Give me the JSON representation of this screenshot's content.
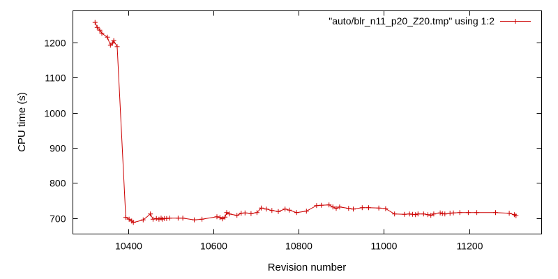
{
  "chart_data": {
    "type": "line",
    "xlabel": "Revision number",
    "ylabel": "CPU time (s)",
    "xlim": [
      10270,
      11370
    ],
    "ylim": [
      655,
      1290
    ],
    "xticks": [
      10400,
      10600,
      10800,
      11000,
      11200
    ],
    "yticks": [
      700,
      800,
      900,
      1000,
      1100,
      1200
    ],
    "grid": false,
    "legend_position": "top-right",
    "series_color": "#cc0000",
    "series": [
      {
        "name": "\"auto/blr_n11_p20_Z20.tmp\" using 1:2",
        "x": [
          10322,
          10327,
          10333,
          10338,
          10351,
          10358,
          10363,
          10366,
          10374,
          10394,
          10402,
          10408,
          10412,
          10435,
          10452,
          10458,
          10466,
          10472,
          10477,
          10480,
          10485,
          10490,
          10497,
          10517,
          10528,
          10555,
          10573,
          10608,
          10615,
          10621,
          10627,
          10631,
          10637,
          10655,
          10665,
          10674,
          10688,
          10702,
          10712,
          10724,
          10737,
          10752,
          10768,
          10778,
          10795,
          10818,
          10842,
          10853,
          10871,
          10880,
          10888,
          10896,
          10917,
          10928,
          10949,
          10964,
          10988,
          11004,
          11025,
          11048,
          11060,
          11067,
          11074,
          11080,
          11093,
          11103,
          11110,
          11117,
          11132,
          11137,
          11143,
          11155,
          11163,
          11178,
          11198,
          11218,
          11262,
          11294,
          11306,
          11310
        ],
        "y": [
          1257,
          1243,
          1235,
          1226,
          1215,
          1192,
          1198,
          1205,
          1188,
          702,
          697,
          692,
          688,
          695,
          712,
          697,
          699,
          697,
          700,
          697,
          699,
          699,
          700,
          700,
          700,
          695,
          697,
          704,
          702,
          698,
          703,
          716,
          712,
          708,
          714,
          715,
          713,
          716,
          729,
          726,
          722,
          719,
          726,
          723,
          716,
          720,
          736,
          737,
          738,
          732,
          728,
          732,
          728,
          726,
          730,
          730,
          729,
          727,
          712,
          711,
          712,
          711,
          710,
          712,
          712,
          710,
          708,
          712,
          715,
          713,
          712,
          714,
          715,
          716,
          716,
          716,
          716,
          714,
          710,
          707
        ]
      }
    ]
  }
}
